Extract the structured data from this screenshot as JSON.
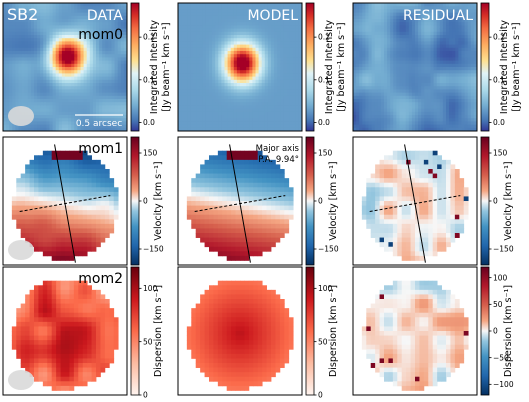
{
  "figure": {
    "object_label": "SB2",
    "column_headers": [
      "DATA",
      "MODEL",
      "RESIDUAL"
    ],
    "scalebar_label": "0.5 arcsec",
    "axis_note_line1": "Major axis",
    "axis_note_line2": "P.A. 9.94°"
  },
  "chart_data": [
    {
      "type": "heatmap",
      "row": "mom0",
      "moment_label": "mom0",
      "colorbar": {
        "label_line1": "Integrated Intensity",
        "label_line2": "[Jy beam⁻¹ km s⁻¹]",
        "range": [
          -0.02,
          0.28
        ],
        "ticks": [
          0.0,
          0.1,
          0.2
        ],
        "tick_labels": [
          "0.0",
          "0.1",
          "0.2"
        ],
        "colormap": "RdYlBu_r"
      },
      "panels": [
        {
          "column": "DATA",
          "colorbar_labelled": true,
          "peak_value": 0.28,
          "peak_center": [
            0.52,
            0.42
          ]
        },
        {
          "column": "MODEL",
          "colorbar_labelled": true,
          "peak_value": 0.28,
          "peak_center": [
            0.52,
            0.47
          ]
        },
        {
          "column": "RESIDUAL",
          "colorbar_labelled": true,
          "peak_value": 0.03,
          "peak_center": [
            0.5,
            0.5
          ]
        }
      ]
    },
    {
      "type": "heatmap",
      "row": "mom1",
      "moment_label": "mom1",
      "colorbar": {
        "label": "Velocity [km s⁻¹]",
        "range": [
          -200,
          200
        ],
        "ticks": [
          150,
          0,
          -150
        ],
        "tick_labels": [
          "150",
          "0",
          "−150"
        ],
        "colormap": "RdBu_r"
      },
      "major_axis_pa_deg": 9.94,
      "panels": [
        {
          "column": "DATA",
          "colorbar_labelled": true
        },
        {
          "column": "MODEL",
          "colorbar_labelled": true
        },
        {
          "column": "RESIDUAL",
          "colorbar_labelled": true
        }
      ]
    },
    {
      "type": "heatmap",
      "row": "mom2",
      "moment_label": "mom2",
      "colorbar": {
        "label": "Dispersion [km s⁻¹]",
        "range": [
          0,
          120
        ],
        "ticks": [
          100,
          50,
          0
        ],
        "tick_labels": [
          "100",
          "50",
          "0"
        ],
        "colormap": "Reds"
      },
      "residual_colorbar": {
        "range": [
          -120,
          120
        ],
        "ticks": [
          100,
          50,
          0,
          -50,
          -100
        ],
        "tick_labels": [
          "100",
          "50",
          "0",
          "−50",
          "−100"
        ],
        "colormap": "RdBu_r"
      },
      "panels": [
        {
          "column": "DATA",
          "colorbar_labelled": true
        },
        {
          "column": "MODEL",
          "colorbar_labelled": true
        },
        {
          "column": "RESIDUAL",
          "colorbar_labelled": true
        }
      ]
    }
  ]
}
